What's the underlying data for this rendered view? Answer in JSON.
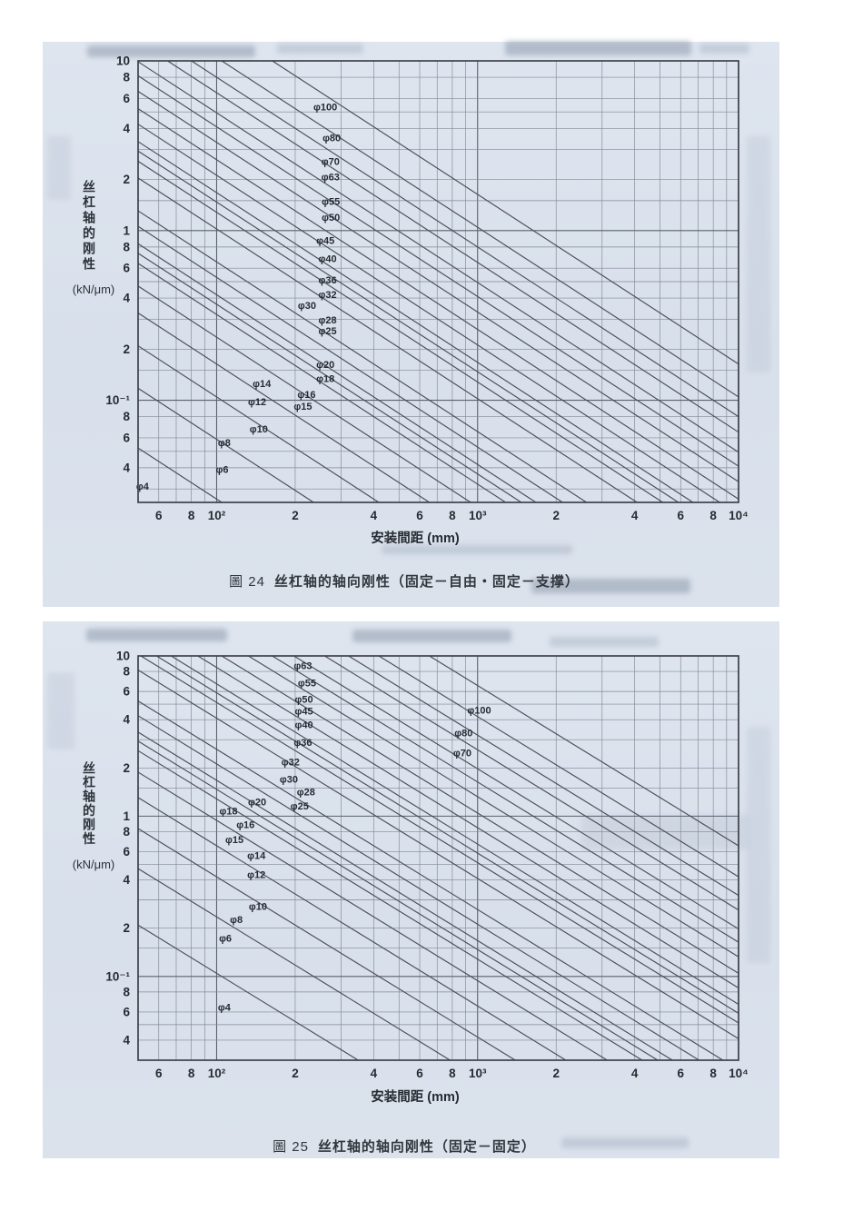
{
  "page": {
    "paper_color": "#d9e1ec",
    "grid_color": "#828994",
    "curve_color": "#4a4e58",
    "text_color": "#272b32"
  },
  "chart_data": [
    {
      "type": "line",
      "figure_label": "圖 24",
      "title": "丝杠轴的轴向刚性（固定－自由・固定－支撑）",
      "xlabel": "安装間距 (mm)",
      "ylabel": "丝杠轴的刚性",
      "ylabel_unit": "(kN/μm)",
      "x_scale": "log",
      "y_scale": "log",
      "xlim": [
        50,
        10000
      ],
      "ylim": [
        0.025,
        10
      ],
      "grid": true,
      "grid_x_mantissas": [
        1,
        2,
        3,
        4,
        5,
        6,
        7,
        8,
        9
      ],
      "grid_y_mantissas": [
        1,
        1.5,
        2,
        3,
        4,
        5,
        6,
        8
      ],
      "x_ticks": [
        {
          "v": 60,
          "t": "6"
        },
        {
          "v": 80,
          "t": "8"
        },
        {
          "v": 100,
          "t": "10²"
        },
        {
          "v": 200,
          "t": "2"
        },
        {
          "v": 400,
          "t": "4"
        },
        {
          "v": 600,
          "t": "6"
        },
        {
          "v": 800,
          "t": "8"
        },
        {
          "v": 1000,
          "t": "10³"
        },
        {
          "v": 2000,
          "t": "2"
        },
        {
          "v": 4000,
          "t": "4"
        },
        {
          "v": 6000,
          "t": "6"
        },
        {
          "v": 8000,
          "t": "8"
        },
        {
          "v": 10000,
          "t": "10⁴"
        }
      ],
      "y_ticks": [
        {
          "v": 10,
          "t": "10"
        },
        {
          "v": 8,
          "t": "8"
        },
        {
          "v": 6,
          "t": "6"
        },
        {
          "v": 4,
          "t": "4"
        },
        {
          "v": 2,
          "t": "2"
        },
        {
          "v": 1,
          "t": "1"
        },
        {
          "v": 0.8,
          "t": "8"
        },
        {
          "v": 0.6,
          "t": "6"
        },
        {
          "v": 0.4,
          "t": "4"
        },
        {
          "v": 0.2,
          "t": "2"
        },
        {
          "v": 0.1,
          "t": "10⁻¹"
        },
        {
          "v": 0.08,
          "t": "8"
        },
        {
          "v": 0.06,
          "t": "6"
        },
        {
          "v": 0.04,
          "t": "4"
        }
      ],
      "model": "k [kN/μm] = C × d² / L, straight lines of slope −1 on log-log axes (fixed-free / fixed-supported shaft)",
      "C": 0.1634,
      "series": [
        {
          "d": 4,
          "label": "φ4",
          "label_L": 52,
          "label_k": 0.031
        },
        {
          "d": 6,
          "label": "φ6",
          "label_L": 105,
          "label_k": 0.039
        },
        {
          "d": 8,
          "label": "φ8",
          "label_L": 107,
          "label_k": 0.056
        },
        {
          "d": 10,
          "label": "φ10",
          "label_L": 145,
          "label_k": 0.0675
        },
        {
          "d": 12,
          "label": "φ12",
          "label_L": 143,
          "label_k": 0.0975
        },
        {
          "d": 14,
          "label": "φ14",
          "label_L": 149,
          "label_k": 0.125
        },
        {
          "d": 15,
          "label": "φ15",
          "label_L": 214,
          "label_k": 0.092
        },
        {
          "d": 16,
          "label": "φ16",
          "label_L": 221,
          "label_k": 0.108
        },
        {
          "d": 18,
          "label": "φ18",
          "label_L": 261,
          "label_k": 0.134
        },
        {
          "d": 20,
          "label": "φ20",
          "label_L": 261,
          "label_k": 0.162
        },
        {
          "d": 25,
          "label": "φ25",
          "label_L": 266,
          "label_k": 0.255
        },
        {
          "d": 28,
          "label": "φ28",
          "label_L": 266,
          "label_k": 0.296
        },
        {
          "d": 30,
          "label": "φ30",
          "label_L": 222,
          "label_k": 0.36
        },
        {
          "d": 32,
          "label": "φ32",
          "label_L": 266,
          "label_k": 0.417
        },
        {
          "d": 36,
          "label": "φ36",
          "label_L": 266,
          "label_k": 0.51
        },
        {
          "d": 40,
          "label": "φ40",
          "label_L": 266,
          "label_k": 0.68
        },
        {
          "d": 45,
          "label": "φ45",
          "label_L": 261,
          "label_k": 0.87
        },
        {
          "d": 50,
          "label": "φ50",
          "label_L": 274,
          "label_k": 1.19
        },
        {
          "d": 55,
          "label": "φ55",
          "label_L": 274,
          "label_k": 1.48
        },
        {
          "d": 63,
          "label": "φ63",
          "label_L": 273,
          "label_k": 2.07
        },
        {
          "d": 70,
          "label": "φ70",
          "label_L": 273,
          "label_k": 2.55
        },
        {
          "d": 80,
          "label": "φ80",
          "label_L": 276,
          "label_k": 3.51
        },
        {
          "d": 100,
          "label": "φ100",
          "label_L": 261,
          "label_k": 5.33
        }
      ]
    },
    {
      "type": "line",
      "figure_label": "圖 25",
      "title": "丝杠轴的轴向刚性（固定－固定）",
      "xlabel": "安装間距 (mm)",
      "ylabel": "丝杠轴的刚性",
      "ylabel_unit": "(kN/μm)",
      "x_scale": "log",
      "y_scale": "log",
      "xlim": [
        50,
        10000
      ],
      "ylim": [
        0.03,
        10
      ],
      "grid": true,
      "grid_x_mantissas": [
        1,
        2,
        3,
        4,
        5,
        6,
        7,
        8,
        9
      ],
      "grid_y_mantissas": [
        1,
        1.5,
        2,
        3,
        4,
        5,
        6,
        8
      ],
      "x_ticks": [
        {
          "v": 60,
          "t": "6"
        },
        {
          "v": 80,
          "t": "8"
        },
        {
          "v": 100,
          "t": "10²"
        },
        {
          "v": 200,
          "t": "2"
        },
        {
          "v": 400,
          "t": "4"
        },
        {
          "v": 600,
          "t": "6"
        },
        {
          "v": 800,
          "t": "8"
        },
        {
          "v": 1000,
          "t": "10³"
        },
        {
          "v": 2000,
          "t": "2"
        },
        {
          "v": 4000,
          "t": "4"
        },
        {
          "v": 6000,
          "t": "6"
        },
        {
          "v": 8000,
          "t": "8"
        },
        {
          "v": 10000,
          "t": "10⁴"
        }
      ],
      "y_ticks": [
        {
          "v": 10,
          "t": "10"
        },
        {
          "v": 8,
          "t": "8"
        },
        {
          "v": 6,
          "t": "6"
        },
        {
          "v": 4,
          "t": "4"
        },
        {
          "v": 2,
          "t": "2"
        },
        {
          "v": 1,
          "t": "1"
        },
        {
          "v": 0.8,
          "t": "8"
        },
        {
          "v": 0.6,
          "t": "6"
        },
        {
          "v": 0.4,
          "t": "4"
        },
        {
          "v": 0.2,
          "t": "2"
        },
        {
          "v": 0.1,
          "t": "10⁻¹"
        },
        {
          "v": 0.08,
          "t": "8"
        },
        {
          "v": 0.06,
          "t": "6"
        },
        {
          "v": 0.04,
          "t": "4"
        }
      ],
      "model": "k [kN/μm] = C × d² / L, straight lines of slope −1 on log-log axes (fixed-fixed shaft, 4× rigidity)",
      "C": 0.6536,
      "series": [
        {
          "d": 4,
          "label": "φ4",
          "label_L": 107,
          "label_k": 0.064
        },
        {
          "d": 6,
          "label": "φ6",
          "label_L": 108,
          "label_k": 0.173
        },
        {
          "d": 8,
          "label": "φ8",
          "label_L": 119,
          "label_k": 0.225
        },
        {
          "d": 10,
          "label": "φ10",
          "label_L": 144,
          "label_k": 0.273
        },
        {
          "d": 12,
          "label": "φ12",
          "label_L": 142,
          "label_k": 0.43
        },
        {
          "d": 14,
          "label": "φ14",
          "label_L": 142,
          "label_k": 0.566
        },
        {
          "d": 15,
          "label": "φ15",
          "label_L": 117,
          "label_k": 0.71
        },
        {
          "d": 16,
          "label": "φ16",
          "label_L": 129,
          "label_k": 0.88
        },
        {
          "d": 18,
          "label": "φ18",
          "label_L": 111,
          "label_k": 1.07
        },
        {
          "d": 20,
          "label": "φ20",
          "label_L": 143,
          "label_k": 1.22
        },
        {
          "d": 25,
          "label": "φ25",
          "label_L": 208,
          "label_k": 1.15
        },
        {
          "d": 28,
          "label": "φ28",
          "label_L": 220,
          "label_k": 1.41
        },
        {
          "d": 30,
          "label": "φ30",
          "label_L": 189,
          "label_k": 1.69
        },
        {
          "d": 32,
          "label": "φ32",
          "label_L": 192,
          "label_k": 2.17
        },
        {
          "d": 36,
          "label": "φ36",
          "label_L": 214,
          "label_k": 2.88
        },
        {
          "d": 40,
          "label": "φ40",
          "label_L": 216,
          "label_k": 3.7
        },
        {
          "d": 45,
          "label": "φ45",
          "label_L": 216,
          "label_k": 4.5
        },
        {
          "d": 50,
          "label": "φ50",
          "label_L": 216,
          "label_k": 5.33
        },
        {
          "d": 55,
          "label": "φ55",
          "label_L": 222,
          "label_k": 6.75
        },
        {
          "d": 63,
          "label": "φ63",
          "label_L": 214,
          "label_k": 8.66
        },
        {
          "d": 70,
          "label": "φ70",
          "label_L": 874,
          "label_k": 2.47
        },
        {
          "d": 80,
          "label": "φ80",
          "label_L": 884,
          "label_k": 3.29
        },
        {
          "d": 100,
          "label": "φ100",
          "label_L": 1014,
          "label_k": 4.56
        }
      ]
    }
  ]
}
